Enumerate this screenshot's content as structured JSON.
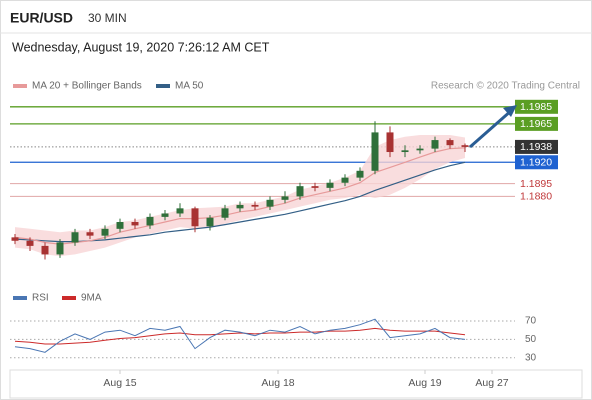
{
  "header": {
    "symbol": "EUR/USD",
    "timeframe": "30 MIN",
    "datetime": "Wednesday, August 19, 2020 7:26:12 AM CET"
  },
  "chart_data": [
    {
      "type": "candlestick",
      "source": "Research © 2020 Trading Central",
      "x": [
        1,
        4,
        7,
        10,
        13,
        16,
        19,
        22,
        25,
        28,
        31,
        34,
        37,
        40,
        43,
        46,
        49,
        52,
        55,
        58,
        61,
        64,
        67,
        70,
        73,
        76,
        79,
        82,
        85,
        88,
        91
      ],
      "open": [
        1.1832,
        1.1828,
        1.1822,
        1.1812,
        1.1826,
        1.1838,
        1.1834,
        1.1842,
        1.185,
        1.1846,
        1.1856,
        1.186,
        1.1866,
        1.1845,
        1.1855,
        1.1866,
        1.187,
        1.1868,
        1.1876,
        1.188,
        1.1892,
        1.189,
        1.1896,
        1.1902,
        1.191,
        1.1955,
        1.1932,
        1.1934,
        1.1936,
        1.1946,
        1.194
      ],
      "high": [
        1.1836,
        1.1832,
        1.1826,
        1.183,
        1.1842,
        1.1842,
        1.1846,
        1.1854,
        1.1854,
        1.186,
        1.1864,
        1.1872,
        1.1868,
        1.1858,
        1.187,
        1.1874,
        1.1874,
        1.188,
        1.1886,
        1.1896,
        1.1896,
        1.19,
        1.1906,
        1.1914,
        1.1968,
        1.1962,
        1.194,
        1.194,
        1.195,
        1.1948,
        1.1942
      ],
      "low": [
        1.1824,
        1.1816,
        1.1806,
        1.1808,
        1.1822,
        1.183,
        1.183,
        1.1838,
        1.1842,
        1.1842,
        1.1852,
        1.1856,
        1.1838,
        1.184,
        1.1852,
        1.1862,
        1.1864,
        1.1864,
        1.1872,
        1.1876,
        1.1886,
        1.1886,
        1.1892,
        1.1898,
        1.1906,
        1.1926,
        1.1926,
        1.193,
        1.1932,
        1.1936,
        1.1932
      ],
      "close": [
        1.1828,
        1.1822,
        1.1812,
        1.1826,
        1.1838,
        1.1834,
        1.1842,
        1.185,
        1.1846,
        1.1856,
        1.186,
        1.1866,
        1.1845,
        1.1855,
        1.1866,
        1.187,
        1.1868,
        1.1876,
        1.188,
        1.1892,
        1.189,
        1.1896,
        1.1902,
        1.191,
        1.1955,
        1.1932,
        1.1934,
        1.1936,
        1.1946,
        1.194,
        1.1938
      ],
      "up_color": "#2f6f3a",
      "down_color": "#a83232",
      "series": [
        {
          "name": "MA 20 + Bollinger Bands",
          "color": "#e79a9a",
          "band_color": "#f7d4d6",
          "values": [
            1.1832,
            1.183,
            1.1826,
            1.1824,
            1.1826,
            1.1828,
            1.1832,
            1.1838,
            1.1842,
            1.1846,
            1.185,
            1.1854,
            1.1854,
            1.1855,
            1.1858,
            1.1862,
            1.1864,
            1.1868,
            1.1872,
            1.1878,
            1.1882,
            1.1886,
            1.189,
            1.1896,
            1.1908,
            1.1914,
            1.192,
            1.1926,
            1.1932,
            1.1936,
            1.1937
          ],
          "upper": [
            1.1844,
            1.1842,
            1.184,
            1.1838,
            1.184,
            1.184,
            1.1844,
            1.185,
            1.1852,
            1.1856,
            1.186,
            1.1864,
            1.1866,
            1.1867,
            1.1868,
            1.1872,
            1.1872,
            1.1876,
            1.188,
            1.1888,
            1.1892,
            1.1896,
            1.1902,
            1.191,
            1.1938,
            1.1946,
            1.195,
            1.1952,
            1.1952,
            1.1952,
            1.1949
          ],
          "lower": [
            1.182,
            1.1818,
            1.1812,
            1.181,
            1.1812,
            1.1816,
            1.182,
            1.1826,
            1.1832,
            1.1836,
            1.184,
            1.1844,
            1.1842,
            1.1843,
            1.1848,
            1.1852,
            1.1856,
            1.186,
            1.1864,
            1.1868,
            1.1872,
            1.1876,
            1.1878,
            1.1882,
            1.1878,
            1.1882,
            1.189,
            1.19,
            1.1912,
            1.192,
            1.1925
          ]
        },
        {
          "name": "MA 50",
          "color": "#335f86",
          "values": [
            1.183,
            1.1829,
            1.1828,
            1.1827,
            1.1827,
            1.1828,
            1.1829,
            1.1831,
            1.1833,
            1.1835,
            1.1838,
            1.184,
            1.1842,
            1.1844,
            1.1847,
            1.185,
            1.1853,
            1.1856,
            1.1859,
            1.1863,
            1.1867,
            1.1871,
            1.1875,
            1.188,
            1.1887,
            1.1893,
            1.1899,
            1.1905,
            1.1911,
            1.1916,
            1.192
          ]
        }
      ],
      "levels": [
        {
          "value": 1.1985,
          "label": "1.1985",
          "color": "#5a9e23",
          "box": true,
          "dash": false
        },
        {
          "value": 1.1965,
          "label": "1.1965",
          "color": "#5a9e23",
          "box": true,
          "dash": false
        },
        {
          "value": 1.1938,
          "label": "1.1938",
          "color": "#333333",
          "box": true,
          "dash": true
        },
        {
          "value": 1.192,
          "label": "1.1920",
          "color": "#1f62d1",
          "box": true,
          "dash": false
        },
        {
          "value": 1.1895,
          "label": "1.1895",
          "color": "#c0393b",
          "box": false,
          "dash": false
        },
        {
          "value": 1.188,
          "label": "1.1880",
          "color": "#c0393b",
          "box": false,
          "dash": false
        }
      ],
      "xlim": [
        0,
        100
      ],
      "ylim": [
        1.1775,
        1.2
      ]
    },
    {
      "type": "line",
      "x": [
        1,
        4,
        7,
        10,
        13,
        16,
        19,
        22,
        25,
        28,
        31,
        34,
        37,
        40,
        43,
        46,
        49,
        52,
        55,
        58,
        61,
        64,
        67,
        70,
        73,
        76,
        79,
        82,
        85,
        88,
        91
      ],
      "series": [
        {
          "name": "RSI",
          "color": "#4a76b3",
          "values": [
            42,
            40,
            36,
            48,
            56,
            50,
            58,
            60,
            54,
            62,
            60,
            64,
            40,
            52,
            60,
            58,
            54,
            60,
            58,
            64,
            56,
            60,
            62,
            66,
            72,
            52,
            54,
            56,
            62,
            52,
            50
          ]
        },
        {
          "name": "9MA",
          "color": "#cc2a2a",
          "values": [
            48,
            47,
            45,
            45,
            46,
            47,
            49,
            51,
            52,
            54,
            56,
            57,
            55,
            55,
            56,
            57,
            56,
            57,
            57,
            58,
            58,
            59,
            59,
            60,
            62,
            60,
            59,
            59,
            59,
            57,
            55
          ]
        }
      ],
      "xlim": [
        0,
        100
      ],
      "ylim": [
        20,
        82
      ],
      "yticks": [
        30,
        50,
        70
      ],
      "xticks": [
        {
          "value": 22,
          "label": "Aug 15"
        },
        {
          "value": 53.6,
          "label": "Aug 18"
        },
        {
          "value": 83,
          "label": "Aug 19"
        },
        {
          "value": 96.4,
          "label": "Aug 27"
        }
      ]
    }
  ]
}
